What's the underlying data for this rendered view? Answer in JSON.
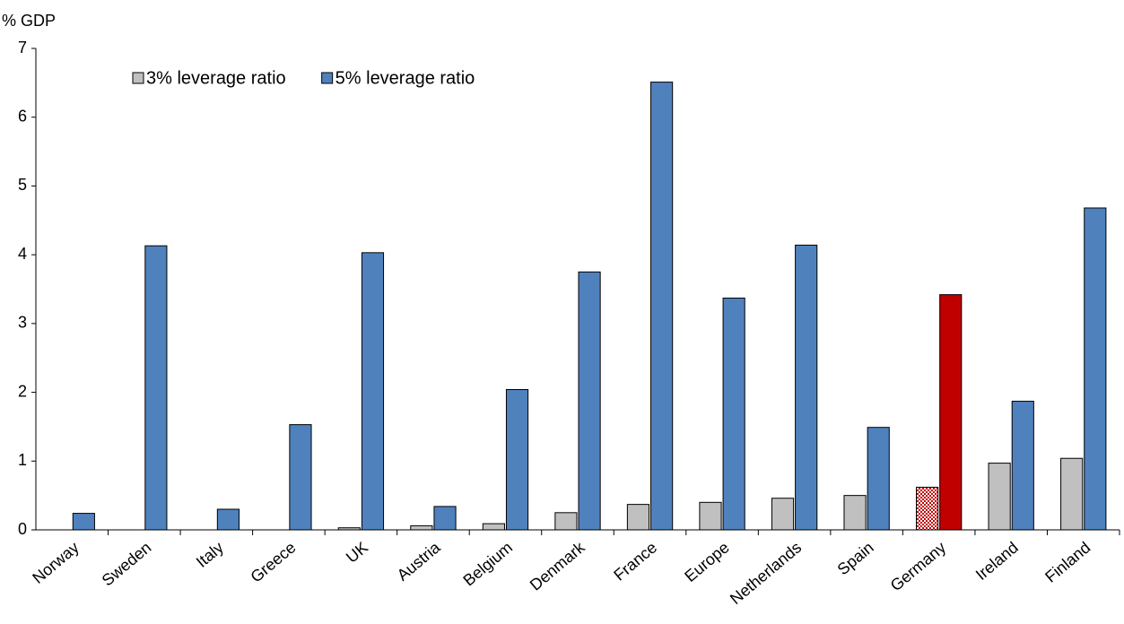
{
  "chart_data": {
    "type": "bar",
    "y_label": "% GDP",
    "categories": [
      "Norway",
      "Sweden",
      "Italy",
      "Greece",
      "UK",
      "Austria",
      "Belgium",
      "Denmark",
      "France",
      "Europe",
      "Netherlands",
      "Spain",
      "Germany",
      "Ireland",
      "Finland"
    ],
    "series": [
      {
        "name": "3% leverage ratio",
        "color": "#c0c0c0",
        "values": [
          0,
          0,
          0,
          0,
          0.03,
          0.06,
          0.09,
          0.25,
          0.37,
          0.4,
          0.46,
          0.5,
          0.62,
          0.97,
          1.04
        ],
        "highlight": {
          "categories": [
            "Germany"
          ],
          "color": "#c00000",
          "pattern": "checkered"
        }
      },
      {
        "name": "5% leverage ratio",
        "color": "#4f81bd",
        "values": [
          0.24,
          4.13,
          0.3,
          1.53,
          4.03,
          0.34,
          2.04,
          3.75,
          6.51,
          3.37,
          4.14,
          1.49,
          3.42,
          1.87,
          4.68
        ],
        "highlight": {
          "categories": [
            "Germany"
          ],
          "color": "#c00000"
        }
      }
    ],
    "ylim": [
      0,
      7
    ],
    "yticks": [
      0,
      1,
      2,
      3,
      4,
      5,
      6,
      7
    ],
    "legend": "top-left"
  }
}
